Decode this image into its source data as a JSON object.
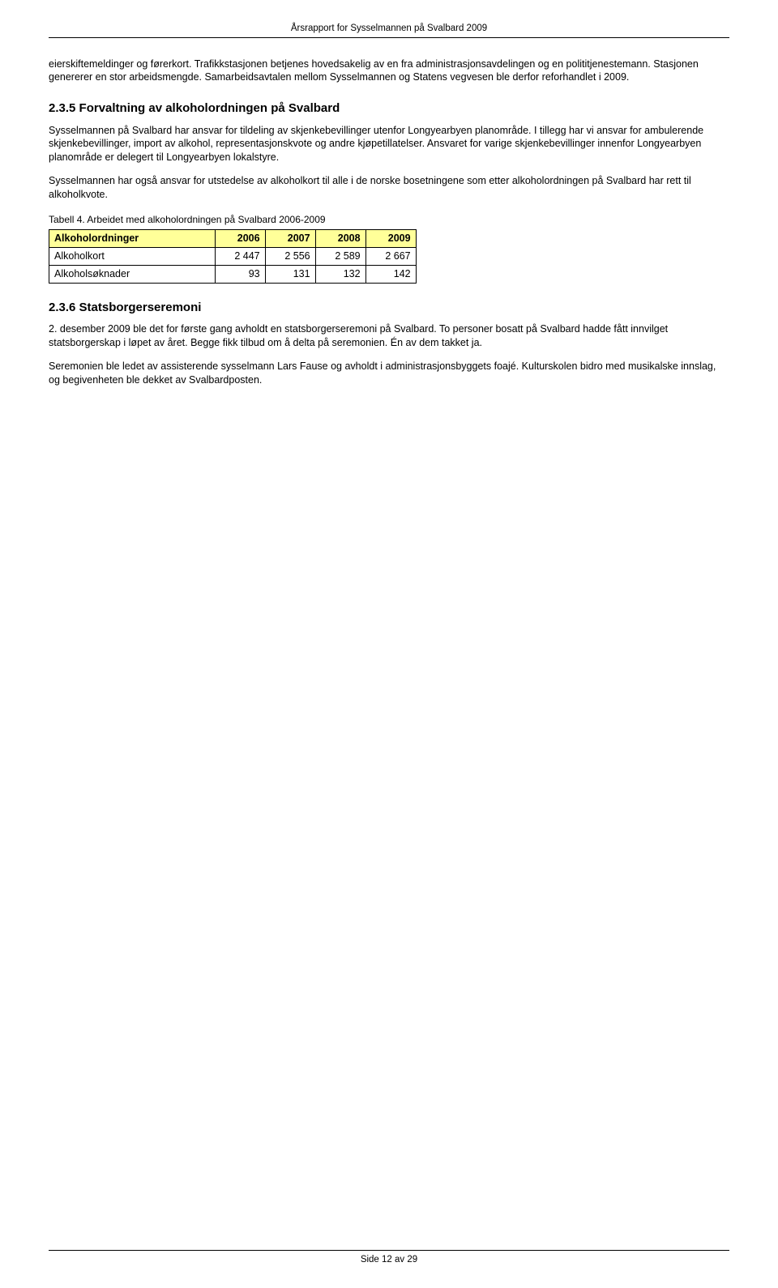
{
  "header": {
    "title": "Årsrapport for Sysselmannen på Svalbard 2009"
  },
  "content": {
    "p1": "eierskiftemeldinger og førerkort. Trafikkstasjonen betjenes hovedsakelig av en fra administrasjonsavdelingen og en polititjenestemann. Stasjonen genererer en stor arbeidsmengde. Samarbeidsavtalen mellom Sysselmannen og Statens vegvesen ble derfor reforhandlet i 2009.",
    "h235": "2.3.5 Forvaltning av alkoholordningen på Svalbard",
    "p235a": "Sysselmannen på Svalbard har ansvar for tildeling av skjenkebevillinger utenfor Longyearbyen planområde. I tillegg har vi ansvar for ambulerende skjenkebevillinger, import av alkohol, representasjonskvote og andre kjøpetillatelser. Ansvaret for varige skjenkebevillinger innenfor Longyearbyen planområde er delegert til Longyearbyen lokalstyre.",
    "p235b": "Sysselmannen har også ansvar for utstedelse av alkoholkort til alle i de norske bosetningene som etter alkoholordningen på Svalbard har rett til alkoholkvote.",
    "table4": {
      "caption": "Tabell 4. Arbeidet med alkoholordningen på Svalbard 2006-2009",
      "header_bg": "#ffff99",
      "columns": [
        "Alkoholordninger",
        "2006",
        "2007",
        "2008",
        "2009"
      ],
      "rows": [
        [
          "Alkoholkort",
          "2 447",
          "2 556",
          "2 589",
          "2 667"
        ],
        [
          "Alkoholsøknader",
          "93",
          "131",
          "132",
          "142"
        ]
      ]
    },
    "h236": "2.3.6 Statsborgerseremoni",
    "p236a": "2. desember 2009 ble det for første gang avholdt en statsborgerseremoni på Svalbard. To personer bosatt på Svalbard hadde fått innvilget statsborgerskap i løpet av året. Begge fikk tilbud om å delta på seremonien. Én av dem takket ja.",
    "p236b": "Seremonien ble ledet av assisterende sysselmann Lars Fause og avholdt i administrasjonsbyggets foajé. Kulturskolen bidro med musikalske innslag, og begivenheten ble dekket av Svalbardposten."
  },
  "footer": {
    "page_prefix": "Side ",
    "page_current": "12",
    "page_sep": " av ",
    "page_total": "29"
  }
}
